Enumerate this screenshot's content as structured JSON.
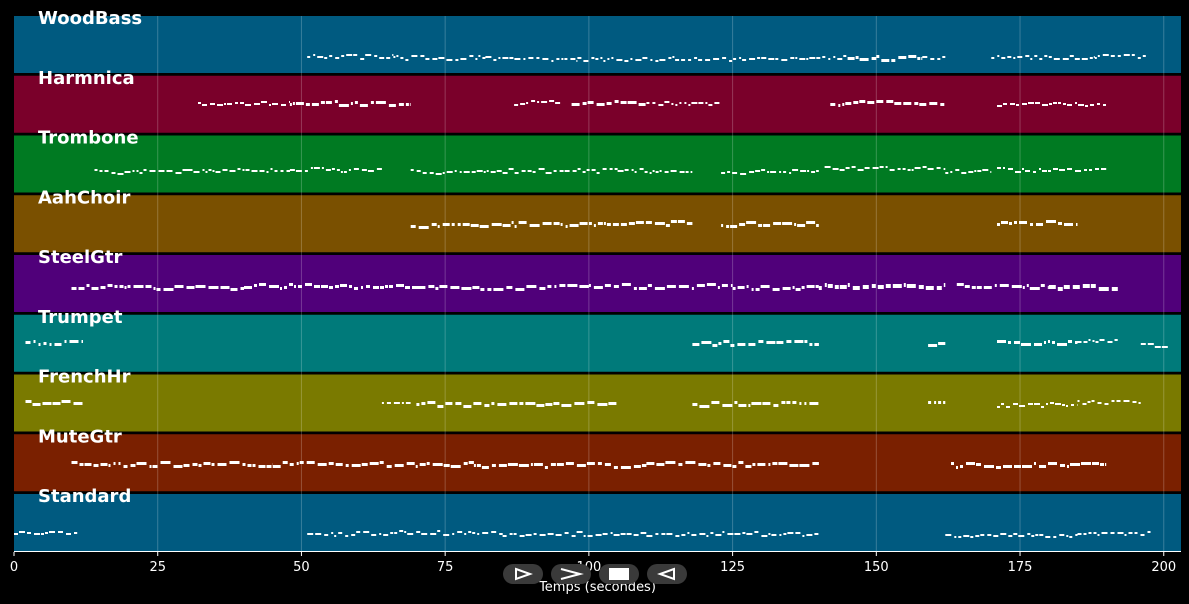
{
  "tracks": [
    {
      "name": "WoodBass",
      "color": "#005a80",
      "notes": [
        [
          51,
          66,
          56,
          2
        ],
        [
          66,
          82,
          57,
          2
        ],
        [
          82,
          98,
          58,
          2
        ],
        [
          98,
          115,
          58,
          2
        ],
        [
          115,
          130,
          58,
          2
        ],
        [
          130,
          145,
          57,
          2
        ],
        [
          145,
          150,
          56,
          3
        ],
        [
          150,
          158,
          57,
          3
        ],
        [
          158,
          162,
          57,
          2
        ],
        [
          170,
          180,
          56,
          2
        ],
        [
          180,
          188,
          57,
          2
        ],
        [
          188,
          197,
          55,
          2
        ]
      ]
    },
    {
      "name": "Harmnica",
      "color": "#7a002a",
      "notes": [
        [
          32,
          48,
          103,
          2
        ],
        [
          48,
          69,
          102,
          3
        ],
        [
          87,
          95,
          102,
          2
        ],
        [
          97,
          110,
          102,
          3
        ],
        [
          110,
          123,
          103,
          2
        ],
        [
          142,
          162,
          102,
          3
        ],
        [
          171,
          190,
          103,
          2
        ]
      ]
    },
    {
      "name": "Trombone",
      "color": "#007a22",
      "notes": [
        [
          14,
          30,
          171,
          2
        ],
        [
          30,
          48,
          170,
          2
        ],
        [
          48,
          64,
          169,
          2
        ],
        [
          69,
          85,
          171,
          2
        ],
        [
          85,
          105,
          170,
          2
        ],
        [
          105,
          118,
          170,
          2
        ],
        [
          123,
          140,
          171,
          2
        ],
        [
          141,
          162,
          168,
          2
        ],
        [
          162,
          170,
          171,
          2
        ],
        [
          171,
          190,
          169,
          2
        ]
      ]
    },
    {
      "name": "AahChoir",
      "color": "#7a5000",
      "notes": [
        [
          69,
          85,
          224,
          3
        ],
        [
          85,
          100,
          223,
          3
        ],
        [
          100,
          118,
          222,
          3
        ],
        [
          123,
          140,
          223,
          3
        ],
        [
          171,
          185,
          222,
          3
        ]
      ]
    },
    {
      "name": "SteelGtr",
      "color": "#50007a",
      "notes": [
        [
          10,
          40,
          286,
          3
        ],
        [
          40,
          70,
          285,
          3
        ],
        [
          70,
          100,
          286,
          3
        ],
        [
          100,
          125,
          285,
          3
        ],
        [
          125,
          140,
          286,
          3
        ],
        [
          140,
          162,
          285,
          4
        ],
        [
          164,
          180,
          285,
          3
        ],
        [
          180,
          192,
          286,
          4
        ]
      ]
    },
    {
      "name": "Trumpet",
      "color": "#007a7a",
      "notes": [
        [
          2,
          12,
          341,
          3
        ],
        [
          118,
          140,
          342,
          3
        ],
        [
          159,
          162,
          343,
          3
        ],
        [
          171,
          185,
          342,
          3
        ],
        [
          185,
          192,
          340,
          2
        ],
        [
          196,
          201,
          345,
          2
        ]
      ]
    },
    {
      "name": "FrenchHr",
      "color": "#7a7a00",
      "notes": [
        [
          2,
          12,
          401,
          3
        ],
        [
          64,
          69,
          403,
          2
        ],
        [
          70,
          105,
          403,
          3
        ],
        [
          118,
          140,
          403,
          3
        ],
        [
          159,
          162,
          402,
          3
        ],
        [
          171,
          185,
          404,
          2
        ],
        [
          185,
          196,
          401,
          2
        ]
      ]
    },
    {
      "name": "MuteGtr",
      "color": "#7a2000",
      "notes": [
        [
          10,
          45,
          463,
          3
        ],
        [
          45,
          80,
          463,
          3
        ],
        [
          80,
          110,
          464,
          3
        ],
        [
          110,
          140,
          463,
          3
        ],
        [
          163,
          190,
          464,
          3
        ]
      ]
    },
    {
      "name": "Standard",
      "color": "#005a80",
      "notes": [
        [
          0,
          11,
          532,
          2
        ],
        [
          51,
          67,
          533,
          2
        ],
        [
          67,
          85,
          532,
          2
        ],
        [
          85,
          110,
          533,
          2
        ],
        [
          110,
          140,
          533,
          2
        ],
        [
          162,
          185,
          534,
          2
        ],
        [
          185,
          198,
          533,
          2
        ]
      ]
    }
  ],
  "axis": {
    "ticks": [
      "0",
      "25",
      "50",
      "75",
      "100",
      "125",
      "150",
      "175",
      "200"
    ],
    "xlabel": "Temps (secondes)",
    "xlim": [
      0,
      203
    ]
  },
  "controls": [
    {
      "name": "play-button",
      "icon": "play-outline-icon"
    },
    {
      "name": "next-button",
      "icon": "chevron-right-icon"
    },
    {
      "name": "stop-button",
      "icon": "stop-icon"
    },
    {
      "name": "reverse-play-button",
      "icon": "reverse-play-icon"
    }
  ]
}
